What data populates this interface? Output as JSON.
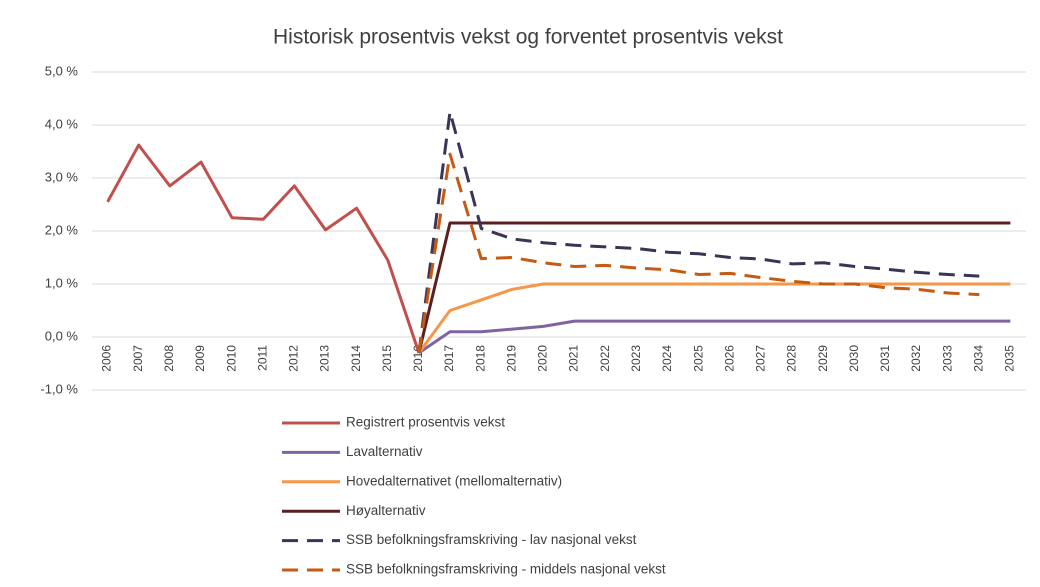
{
  "chart_data": {
    "type": "line",
    "title": "Historisk prosentvis vekst og  forventet prosentvis vekst",
    "categories": [
      "2006",
      "2007",
      "2008",
      "2009",
      "2010",
      "2011",
      "2012",
      "2013",
      "2014",
      "2015",
      "2016",
      "2017",
      "2018",
      "2019",
      "2020",
      "2021",
      "2022",
      "2023",
      "2024",
      "2025",
      "2026",
      "2027",
      "2028",
      "2029",
      "2030",
      "2031",
      "2032",
      "2033",
      "2034",
      "2035"
    ],
    "ylim": [
      -1,
      5
    ],
    "yticks": [
      {
        "value": -1,
        "label": "-1,0 %"
      },
      {
        "value": 0,
        "label": "0,0 %"
      },
      {
        "value": 1,
        "label": "1,0 %"
      },
      {
        "value": 2,
        "label": "2,0 %"
      },
      {
        "value": 3,
        "label": "3,0 %"
      },
      {
        "value": 4,
        "label": "4,0 %"
      },
      {
        "value": 5,
        "label": "5,0 %"
      }
    ],
    "grid": true,
    "legend": "bottom",
    "series": [
      {
        "name": "Registrert prosentvis vekst",
        "color": "#c0504d",
        "dashed": false,
        "values": [
          2.55,
          3.62,
          2.85,
          3.3,
          2.25,
          2.22,
          2.85,
          2.02,
          2.43,
          1.45,
          -0.3,
          null,
          null,
          null,
          null,
          null,
          null,
          null,
          null,
          null,
          null,
          null,
          null,
          null,
          null,
          null,
          null,
          null,
          null,
          null
        ]
      },
      {
        "name": "Lavalternativ",
        "color": "#8064a2",
        "dashed": false,
        "values": [
          null,
          null,
          null,
          null,
          null,
          null,
          null,
          null,
          null,
          null,
          -0.3,
          0.1,
          0.1,
          0.15,
          0.2,
          0.3,
          0.3,
          0.3,
          0.3,
          0.3,
          0.3,
          0.3,
          0.3,
          0.3,
          0.3,
          0.3,
          0.3,
          0.3,
          0.3,
          0.3
        ]
      },
      {
        "name": "Hovedalternativet (mellomalternativ)",
        "color": "#f79646",
        "dashed": false,
        "values": [
          null,
          null,
          null,
          null,
          null,
          null,
          null,
          null,
          null,
          null,
          -0.3,
          0.5,
          0.7,
          0.9,
          1.0,
          1.0,
          1.0,
          1.0,
          1.0,
          1.0,
          1.0,
          1.0,
          1.0,
          1.0,
          1.0,
          1.0,
          1.0,
          1.0,
          1.0,
          1.0
        ]
      },
      {
        "name": "Høyalternativ",
        "color": "#5b1f1f",
        "dashed": false,
        "values": [
          null,
          null,
          null,
          null,
          null,
          null,
          null,
          null,
          null,
          null,
          -0.3,
          2.15,
          2.15,
          2.15,
          2.15,
          2.15,
          2.15,
          2.15,
          2.15,
          2.15,
          2.15,
          2.15,
          2.15,
          2.15,
          2.15,
          2.15,
          2.15,
          2.15,
          2.15,
          2.15
        ]
      },
      {
        "name": "SSB befolkningsframskriving - lav nasjonal vekst",
        "color": "#3b3454",
        "dashed": true,
        "values": [
          null,
          null,
          null,
          null,
          null,
          null,
          null,
          null,
          null,
          null,
          -0.3,
          4.25,
          2.05,
          1.85,
          1.78,
          1.73,
          1.7,
          1.67,
          1.6,
          1.57,
          1.5,
          1.47,
          1.38,
          1.4,
          1.33,
          1.28,
          1.22,
          1.18,
          1.15,
          null
        ]
      },
      {
        "name": "SSB befolkningsframskriving - middels nasjonal vekst",
        "color": "#c55a11",
        "dashed": true,
        "values": [
          null,
          null,
          null,
          null,
          null,
          null,
          null,
          null,
          null,
          null,
          -0.3,
          3.45,
          1.48,
          1.5,
          1.4,
          1.33,
          1.35,
          1.3,
          1.27,
          1.18,
          1.2,
          1.12,
          1.05,
          1.0,
          1.0,
          0.93,
          0.9,
          0.83,
          0.8,
          null
        ]
      }
    ]
  }
}
